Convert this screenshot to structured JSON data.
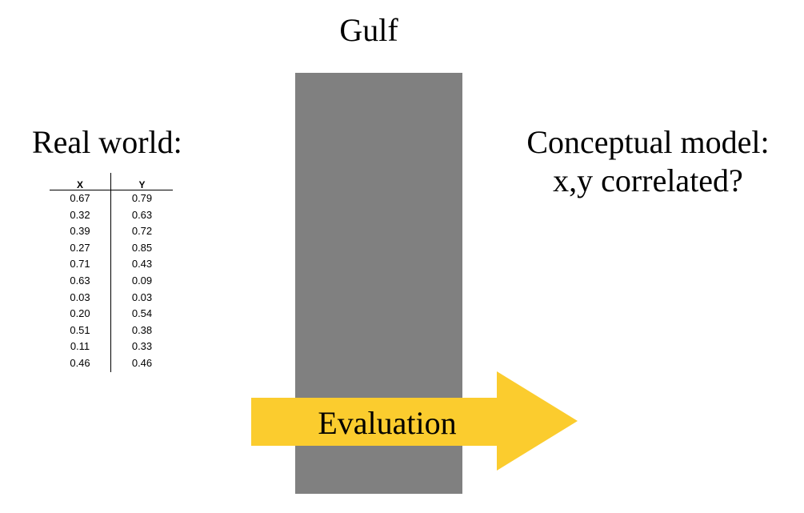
{
  "title": "Gulf",
  "left_label": "Real world:",
  "right_label_lines": [
    "Conceptual model:",
    "x,y correlated?"
  ],
  "arrow_label": "Evaluation",
  "colors": {
    "gulf_bar": "#808080",
    "arrow": "#FBCC2E"
  },
  "table": {
    "headers": [
      "X",
      "Y"
    ],
    "rows": [
      [
        "0.67",
        "0.79"
      ],
      [
        "0.32",
        "0.63"
      ],
      [
        "0.39",
        "0.72"
      ],
      [
        "0.27",
        "0.85"
      ],
      [
        "0.71",
        "0.43"
      ],
      [
        "0.63",
        "0.09"
      ],
      [
        "0.03",
        "0.03"
      ],
      [
        "0.20",
        "0.54"
      ],
      [
        "0.51",
        "0.38"
      ],
      [
        "0.11",
        "0.33"
      ],
      [
        "0.46",
        "0.46"
      ]
    ]
  }
}
